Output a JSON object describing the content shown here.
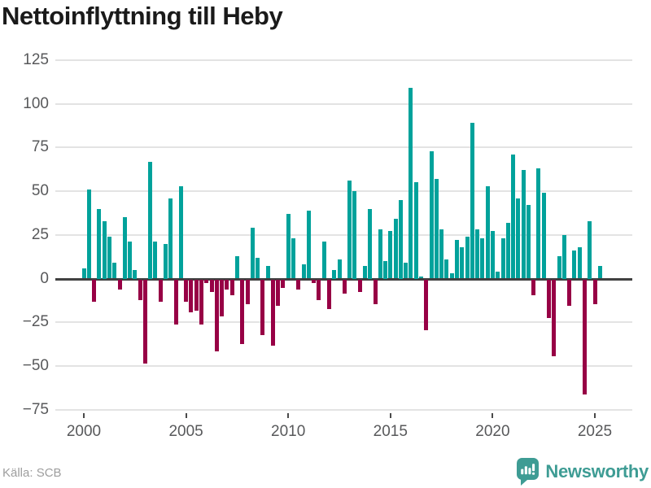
{
  "header": {
    "title": "Nettoinflyttning till Heby"
  },
  "footer": {
    "source": "Källa: SCB",
    "brand": "Newsworthy"
  },
  "colors": {
    "positive_bar": "#00A29B",
    "negative_bar": "#970045",
    "brand_teal": "#3E9C94",
    "zero_line": "#404040",
    "gridline": "#E3E3E3",
    "axis_text": "#58595B",
    "source_text": "#9E9E9E",
    "title_text": "#1A1A1A"
  },
  "chart_data": {
    "type": "bar",
    "title": "Nettoinflyttning till Heby",
    "series_name": "Nettoinflyttning",
    "frequency": "quarterly",
    "x_start": "2000-Q1",
    "x_end": "2025-Q2",
    "values": [
      6,
      51,
      -13,
      40,
      33,
      24,
      9,
      -6,
      35,
      21,
      5,
      -12,
      -48,
      67,
      21,
      -13,
      20,
      46,
      -26,
      53,
      -13,
      -19,
      -18,
      -26,
      -2,
      -7,
      -41,
      -21,
      -6,
      -9,
      13,
      -37,
      -14,
      29,
      12,
      -32,
      7,
      -38,
      -15,
      -5,
      37,
      23,
      -6,
      8,
      39,
      -2,
      -12,
      21,
      -17,
      5,
      11,
      -8,
      56,
      50,
      -7,
      7,
      40,
      -14,
      28,
      10,
      27,
      34,
      45,
      9,
      109,
      55,
      1,
      -29,
      73,
      57,
      28,
      11,
      3,
      22,
      18,
      24,
      89,
      28,
      23,
      53,
      27,
      4,
      23,
      32,
      71,
      46,
      62,
      42,
      -9,
      63,
      49,
      -22,
      -44,
      13,
      25,
      -15,
      16,
      18,
      -66,
      33,
      -14,
      7
    ],
    "ylim": [
      -75,
      125
    ],
    "yticks": [
      125,
      100,
      75,
      50,
      25,
      0,
      -25,
      -50,
      -75
    ],
    "y_tick_labels": [
      "125",
      "100",
      "75",
      "50",
      "25",
      "0",
      "−25",
      "−50",
      "−75"
    ],
    "xticks": [
      {
        "label": "2000",
        "quarter_index": 0
      },
      {
        "label": "2005",
        "quarter_index": 20
      },
      {
        "label": "2010",
        "quarter_index": 40
      },
      {
        "label": "2015",
        "quarter_index": 60
      },
      {
        "label": "2020",
        "quarter_index": 80
      },
      {
        "label": "2025",
        "quarter_index": 100
      }
    ],
    "grid": true,
    "legend_position": "none",
    "positive_color": "#00A29B",
    "negative_color": "#970045"
  }
}
